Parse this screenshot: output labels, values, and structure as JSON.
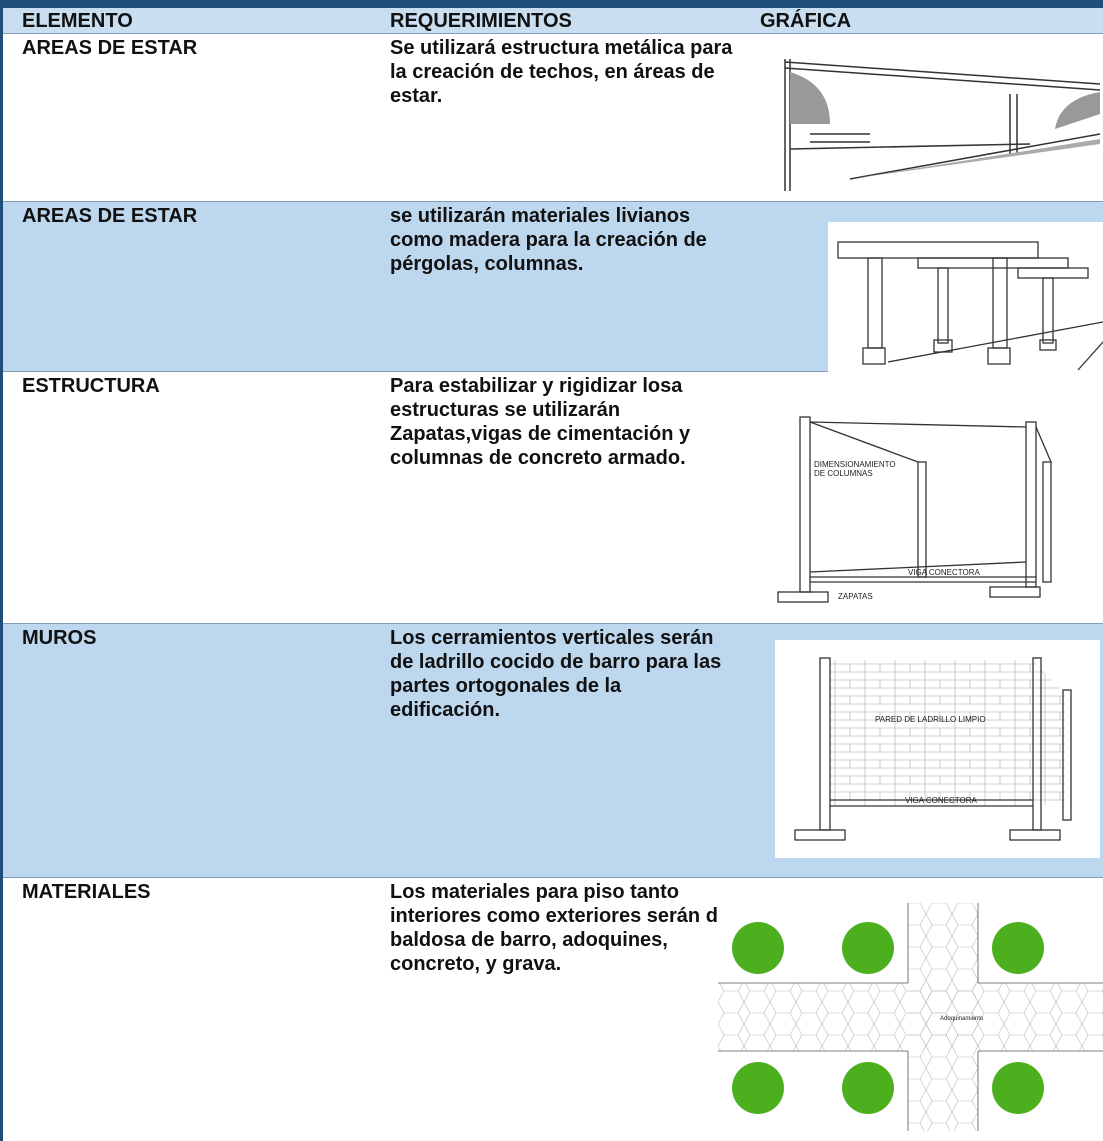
{
  "table": {
    "header": [
      "ELEMENTO",
      "REQUERIMIENTOS",
      "GRÁFICA"
    ],
    "rows": [
      {
        "element": "AREAS DE ESTAR",
        "requirement": "Se utilizará estructura metálica para la creación de techos, en áreas de estar."
      },
      {
        "element": "AREAS DE ESTAR",
        "requirement": "se utilizarán materiales livianos como madera para la creación de pérgolas, columnas."
      },
      {
        "element": "ESTRUCTURA",
        "requirement": "Para estabilizar y rigidizar losa estructuras se utilizarán Zapatas,vigas de cimentación y columnas de concreto armado.",
        "graphic_labels": [
          "DIMENSIONAMIENTO",
          "DE COLUMNAS",
          "VIGA CONECTORA",
          "ZAPATAS"
        ]
      },
      {
        "element": "MUROS",
        "requirement": "Los cerramientos verticales serán de ladrillo cocido de barro para las partes ortogonales de la edificación.",
        "graphic_labels": [
          "PARED DE LADRILLO LIMPIO",
          "VIGA CONECTORA"
        ]
      },
      {
        "element": "MATERIALES",
        "requirement": "Los materiales para piso tanto interiores como exteriores serán de baldosa de barro, adoquines, concreto, y grava.",
        "graphic_labels": [
          "Adoquinamiento"
        ]
      }
    ]
  }
}
